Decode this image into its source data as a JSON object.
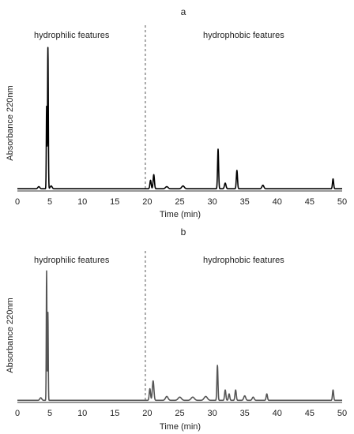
{
  "chart_data": [
    {
      "panel": "a",
      "type": "line",
      "xlabel": "Time (min)",
      "ylabel": "Absorbance 220nm",
      "xlim": [
        0,
        50
      ],
      "ylim": [
        0,
        1
      ],
      "xticks": [
        "0",
        "5",
        "10",
        "15",
        "20",
        "25",
        "30",
        "35",
        "40",
        "45",
        "50"
      ],
      "grid": false,
      "divider_x": 19.7,
      "annotations": [
        "hydrophilic features",
        "hydrophobic features"
      ],
      "color": "#000000",
      "baseline": 0.01,
      "peaks": [
        {
          "x": 3.3,
          "y": 0.015,
          "w": 0.15
        },
        {
          "x": 4.5,
          "y": 0.58,
          "w": 0.05
        },
        {
          "x": 4.7,
          "y": 1.0,
          "w": 0.06
        },
        {
          "x": 5.2,
          "y": 0.02,
          "w": 0.15
        },
        {
          "x": 20.5,
          "y": 0.06,
          "w": 0.1
        },
        {
          "x": 21.0,
          "y": 0.1,
          "w": 0.1
        },
        {
          "x": 23.0,
          "y": 0.015,
          "w": 0.2
        },
        {
          "x": 25.5,
          "y": 0.02,
          "w": 0.2
        },
        {
          "x": 30.9,
          "y": 0.28,
          "w": 0.08
        },
        {
          "x": 32.0,
          "y": 0.04,
          "w": 0.12
        },
        {
          "x": 33.8,
          "y": 0.13,
          "w": 0.09
        },
        {
          "x": 37.8,
          "y": 0.025,
          "w": 0.15
        },
        {
          "x": 48.6,
          "y": 0.07,
          "w": 0.09
        }
      ]
    },
    {
      "panel": "b",
      "type": "line",
      "xlabel": "Time (min)",
      "ylabel": "Absorbance 220nm",
      "xlim": [
        0,
        50
      ],
      "ylim": [
        0,
        1
      ],
      "xticks": [
        "0",
        "5",
        "10",
        "15",
        "20",
        "25",
        "30",
        "35",
        "40",
        "45",
        "50"
      ],
      "grid": false,
      "divider_x": 19.7,
      "annotations": [
        "hydrophilic features",
        "hydrophobic features"
      ],
      "color": "#555555",
      "baseline": 0.01,
      "peaks": [
        {
          "x": 3.6,
          "y": 0.02,
          "w": 0.15
        },
        {
          "x": 4.5,
          "y": 1.0,
          "w": 0.05
        },
        {
          "x": 4.7,
          "y": 0.68,
          "w": 0.05
        },
        {
          "x": 20.4,
          "y": 0.09,
          "w": 0.1
        },
        {
          "x": 20.9,
          "y": 0.15,
          "w": 0.12
        },
        {
          "x": 23.0,
          "y": 0.03,
          "w": 0.2
        },
        {
          "x": 25.0,
          "y": 0.025,
          "w": 0.25
        },
        {
          "x": 27.0,
          "y": 0.025,
          "w": 0.25
        },
        {
          "x": 29.0,
          "y": 0.03,
          "w": 0.25
        },
        {
          "x": 30.8,
          "y": 0.27,
          "w": 0.08
        },
        {
          "x": 32.0,
          "y": 0.08,
          "w": 0.1
        },
        {
          "x": 32.6,
          "y": 0.05,
          "w": 0.1
        },
        {
          "x": 33.6,
          "y": 0.08,
          "w": 0.1
        },
        {
          "x": 35.0,
          "y": 0.035,
          "w": 0.15
        },
        {
          "x": 36.3,
          "y": 0.025,
          "w": 0.15
        },
        {
          "x": 38.4,
          "y": 0.05,
          "w": 0.1
        },
        {
          "x": 48.6,
          "y": 0.08,
          "w": 0.09
        }
      ]
    }
  ]
}
